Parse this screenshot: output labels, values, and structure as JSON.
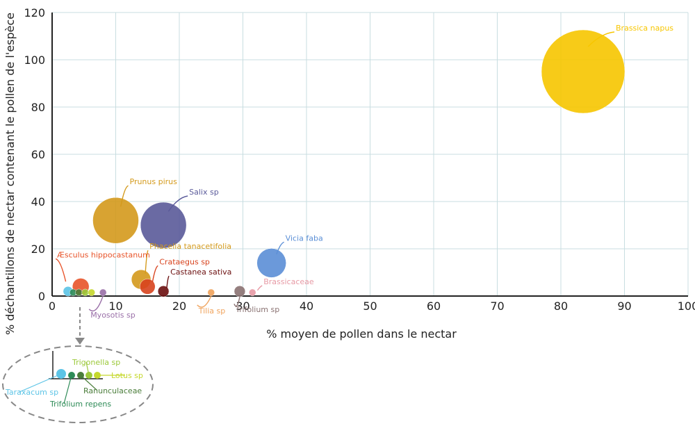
{
  "chart_data": {
    "type": "scatter",
    "subtype": "bubble",
    "title": "",
    "xlabel": "% moyen de pollen dans le nectar",
    "ylabel": "% déchantillons de nectar contenant le pollen de l'espèce",
    "xlim": [
      0,
      100
    ],
    "ylim": [
      0,
      120
    ],
    "xticks": [
      "0",
      "10",
      "20",
      "30",
      "40",
      "50",
      "60",
      "70",
      "80",
      "90",
      "100"
    ],
    "yticks": [
      "0",
      "20",
      "40",
      "60",
      "80",
      "100",
      "120"
    ],
    "grid": true,
    "grid_color": "#c8dde0",
    "series": [
      {
        "name": "Brassica napus",
        "x": 83.5,
        "y": 95,
        "size": 60,
        "color": "#f7c600"
      },
      {
        "name": "Prunus pirus",
        "x": 10,
        "y": 32,
        "size": 33,
        "color": "#d49a1c"
      },
      {
        "name": "Salix sp",
        "x": 17.5,
        "y": 30,
        "size": 33,
        "color": "#5a5a9a"
      },
      {
        "name": "Vicia faba",
        "x": 34.5,
        "y": 14,
        "size": 21,
        "color": "#5b8fd6"
      },
      {
        "name": "Phacelia tanacetifolia",
        "x": 14,
        "y": 7,
        "size": 14,
        "color": "#d49a1c"
      },
      {
        "name": "Æsculus hippocastanum",
        "x": 4.5,
        "y": 4,
        "size": 12,
        "color": "#e8542a"
      },
      {
        "name": "Crataegus sp",
        "x": 15,
        "y": 4,
        "size": 11,
        "color": "#d8431e"
      },
      {
        "name": "Castanea sativa",
        "x": 17.5,
        "y": 2,
        "size": 8,
        "color": "#6b0f0f"
      },
      {
        "name": "Tilia sp",
        "x": 25,
        "y": 1.5,
        "size": 5,
        "color": "#f0a35c"
      },
      {
        "name": "Trifolium sp",
        "x": 29.5,
        "y": 2,
        "size": 8,
        "color": "#8a7272"
      },
      {
        "name": "Brassicaceae",
        "x": 31.5,
        "y": 1.5,
        "size": 5,
        "color": "#e79aa5"
      },
      {
        "name": "Myosotis sp",
        "x": 8,
        "y": 1.5,
        "size": 5,
        "color": "#9a6fa8"
      },
      {
        "name": "Taraxacum sp",
        "x": 2.5,
        "y": 2,
        "size": 7,
        "color": "#5cc4e6"
      },
      {
        "name": "Trifolium repens",
        "x": 3.3,
        "y": 1.5,
        "size": 5,
        "color": "#2e8b57"
      },
      {
        "name": "Ranunculaceae",
        "x": 4.2,
        "y": 1.5,
        "size": 5,
        "color": "#4a7d3a"
      },
      {
        "name": "Trigonella sp",
        "x": 5.2,
        "y": 1.5,
        "size": 5,
        "color": "#9cc93a"
      },
      {
        "name": "Lotus sp",
        "x": 6.2,
        "y": 1.5,
        "size": 5,
        "color": "#c5d82c"
      }
    ],
    "inset": {
      "type": "zoom-detail",
      "source_point": "near origin",
      "items": [
        "Taraxacum sp",
        "Trifolium repens",
        "Ranunculaceae",
        "Trigonella sp",
        "Lotus sp"
      ]
    }
  }
}
